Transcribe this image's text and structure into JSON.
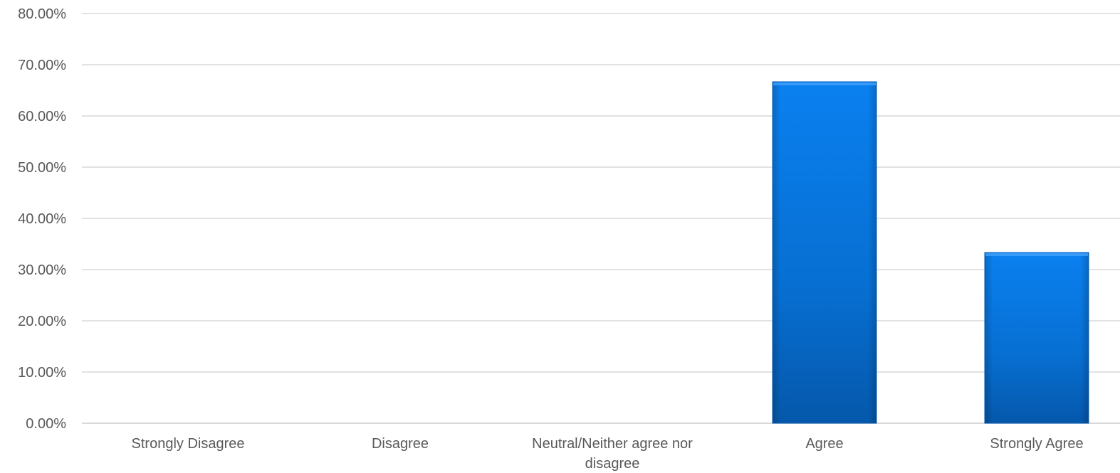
{
  "chart_data": {
    "type": "bar",
    "title": "",
    "xlabel": "",
    "ylabel": "",
    "categories": [
      "Strongly Disagree",
      "Disagree",
      "Neutral/Neither agree nor disagree",
      "Agree",
      "Strongly Agree"
    ],
    "values": [
      0,
      0,
      0,
      66.67,
      33.33
    ],
    "ylim": [
      0,
      80
    ],
    "yticks": [
      0,
      10,
      20,
      30,
      40,
      50,
      60,
      70,
      80
    ],
    "ytick_labels": [
      "0.00%",
      "10.00%",
      "20.00%",
      "30.00%",
      "40.00%",
      "50.00%",
      "60.00%",
      "70.00%",
      "80.00%"
    ],
    "grid": true,
    "legend": "none",
    "bar_color": "#0a78e0",
    "bar_color_dark": "#055aab"
  }
}
